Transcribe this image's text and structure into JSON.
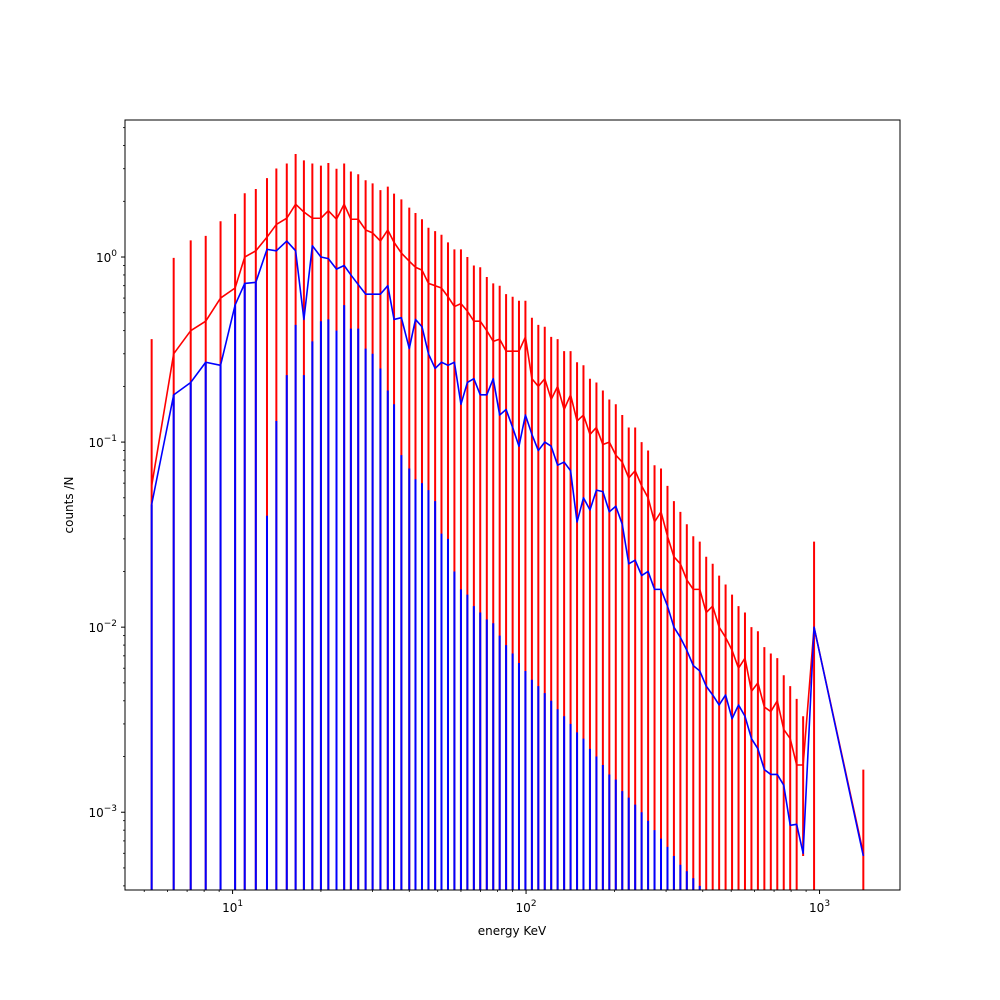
{
  "chart_data": {
    "type": "line",
    "title": "",
    "xlabel": "energy KeV",
    "ylabel": "counts /N",
    "xscale": "log",
    "yscale": "log",
    "xlim": [
      4.3,
      1880
    ],
    "ylim": [
      0.00038,
      5.5
    ],
    "grid": false,
    "legend": "none",
    "x_ticks": [
      {
        "value": 10,
        "mantissa": "10",
        "exp": "1"
      },
      {
        "value": 100,
        "mantissa": "10",
        "exp": "2"
      },
      {
        "value": 1000,
        "mantissa": "10",
        "exp": "3"
      }
    ],
    "y_ticks": [
      {
        "value": 0.001,
        "mantissa": "10",
        "exp": "−3"
      },
      {
        "value": 0.01,
        "mantissa": "10",
        "exp": "−2"
      },
      {
        "value": 0.1,
        "mantissa": "10",
        "exp": "−1"
      },
      {
        "value": 1,
        "mantissa": "10",
        "exp": "0"
      }
    ],
    "x_minor_ticks": [
      5,
      6,
      7,
      8,
      9,
      20,
      30,
      40,
      50,
      60,
      70,
      80,
      90,
      200,
      300,
      400,
      500,
      600,
      700,
      800,
      900
    ],
    "y_minor_ticks": [
      0.0004,
      0.0005,
      0.0006,
      0.0007,
      0.0008,
      0.0009,
      0.002,
      0.003,
      0.004,
      0.005,
      0.006,
      0.007,
      0.008,
      0.009,
      0.02,
      0.03,
      0.04,
      0.05,
      0.06,
      0.07,
      0.08,
      0.09,
      0.2,
      0.3,
      0.4,
      0.5,
      0.6,
      0.7,
      0.8,
      0.9,
      2,
      3,
      4,
      5
    ],
    "series": [
      {
        "color": "#ff0000",
        "x": [
          5.3,
          6.3,
          7.2,
          8.1,
          9.1,
          10.2,
          11.0,
          12.0,
          13.1,
          14.1,
          15.3,
          16.4,
          17.5,
          18.7,
          20.0,
          21.2,
          22.6,
          24.0,
          25.3,
          26.8,
          28.4,
          30.0,
          31.9,
          33.8,
          35.5,
          37.6,
          40.0,
          42.0,
          44.2,
          46.5,
          49.0,
          51.5,
          54.2,
          57.0,
          60.0,
          63.1,
          66.4,
          69.8,
          73.5,
          77.3,
          81.3,
          85.5,
          90.0,
          94.6,
          99.5,
          104.7,
          110.1,
          115.8,
          121.8,
          128.1,
          134.8,
          141.8,
          149.2,
          156.9,
          165.1,
          173.7,
          182.7,
          192.2,
          202.2,
          212.7,
          223.8,
          235.4,
          247.6,
          260.5,
          274.0,
          288.3,
          303.3,
          319.0,
          335.6,
          353.0,
          371.4,
          390.7,
          411.0,
          432.4,
          454.9,
          478.5,
          503.4,
          529.6,
          557.1,
          586.1,
          616.6,
          648.6,
          682.3,
          717.8,
          755.1,
          794.4,
          835.7,
          879.2,
          958,
          1410
        ],
        "values": [
          0.058,
          0.3,
          0.4,
          0.45,
          0.6,
          0.68,
          1.0,
          1.08,
          1.28,
          1.5,
          1.62,
          1.93,
          1.75,
          1.62,
          1.62,
          1.78,
          1.6,
          1.93,
          1.6,
          1.6,
          1.4,
          1.35,
          1.22,
          1.4,
          1.2,
          1.05,
          0.95,
          0.88,
          0.85,
          0.72,
          0.7,
          0.68,
          0.61,
          0.54,
          0.56,
          0.51,
          0.45,
          0.45,
          0.4,
          0.35,
          0.36,
          0.31,
          0.31,
          0.31,
          0.37,
          0.22,
          0.2,
          0.22,
          0.17,
          0.2,
          0.15,
          0.18,
          0.13,
          0.14,
          0.11,
          0.12,
          0.097,
          0.1,
          0.085,
          0.078,
          0.064,
          0.07,
          0.058,
          0.05,
          0.037,
          0.042,
          0.031,
          0.024,
          0.022,
          0.018,
          0.016,
          0.016,
          0.012,
          0.013,
          0.01,
          0.0088,
          0.0075,
          0.006,
          0.0068,
          0.0045,
          0.005,
          0.0037,
          0.0035,
          0.004,
          0.0028,
          0.0025,
          0.0018,
          0.0018,
          0.01,
          0.0006
        ],
        "errors_upper": [
          0.36,
          0.99,
          1.23,
          1.3,
          1.56,
          1.71,
          2.21,
          2.33,
          2.67,
          3.01,
          3.2,
          3.6,
          3.33,
          3.2,
          3.12,
          3.22,
          3.0,
          3.2,
          2.9,
          2.8,
          2.6,
          2.5,
          2.3,
          2.4,
          2.2,
          2.05,
          1.85,
          1.73,
          1.6,
          1.44,
          1.38,
          1.32,
          1.2,
          1.1,
          1.1,
          1.0,
          0.9,
          0.88,
          0.78,
          0.72,
          0.7,
          0.63,
          0.61,
          0.58,
          0.58,
          0.47,
          0.43,
          0.42,
          0.37,
          0.36,
          0.31,
          0.31,
          0.27,
          0.26,
          0.22,
          0.21,
          0.19,
          0.17,
          0.16,
          0.14,
          0.12,
          0.12,
          0.1,
          0.09,
          0.075,
          0.072,
          0.058,
          0.048,
          0.042,
          0.036,
          0.031,
          0.029,
          0.024,
          0.022,
          0.019,
          0.017,
          0.015,
          0.013,
          0.012,
          0.01,
          0.0095,
          0.0078,
          0.0072,
          0.0068,
          0.0055,
          0.0048,
          0.0041,
          0.0033,
          0.029,
          0.0017
        ],
        "errors_lower": [
          0.00038,
          0.00038,
          0.00038,
          0.00038,
          0.00038,
          0.00038,
          0.00038,
          0.00038,
          0.00038,
          0.00038,
          0.00038,
          0.00038,
          0.00038,
          0.00038,
          0.00038,
          0.00038,
          0.00038,
          0.00038,
          0.00038,
          0.00038,
          0.00038,
          0.00038,
          0.00038,
          0.00038,
          0.00038,
          0.00038,
          0.00038,
          0.00038,
          0.00038,
          0.00038,
          0.00038,
          0.00038,
          0.00038,
          0.00038,
          0.00038,
          0.00038,
          0.00038,
          0.00038,
          0.00038,
          0.00038,
          0.00038,
          0.00038,
          0.00038,
          0.00038,
          0.00038,
          0.00038,
          0.00038,
          0.00038,
          0.00038,
          0.00038,
          0.00038,
          0.00038,
          0.00038,
          0.00038,
          0.00038,
          0.00038,
          0.00038,
          0.00038,
          0.00038,
          0.00038,
          0.00038,
          0.00038,
          0.00038,
          0.00038,
          0.00038,
          0.00038,
          0.00038,
          0.00038,
          0.00038,
          0.00038,
          0.00038,
          0.00038,
          0.00038,
          0.00038,
          0.00038,
          0.00038,
          0.00038,
          0.00038,
          0.00038,
          0.00038,
          0.00038,
          0.00038,
          0.00038,
          0.00038,
          0.00038,
          0.00038,
          0.00038,
          0.00058,
          0.00038,
          0.00038
        ]
      },
      {
        "color": "#0000ff",
        "x": [
          5.3,
          6.3,
          7.2,
          8.1,
          9.1,
          10.2,
          11.0,
          12.0,
          13.1,
          14.1,
          15.3,
          16.4,
          17.5,
          18.7,
          20.0,
          21.2,
          22.6,
          24.0,
          25.3,
          26.8,
          28.4,
          30.0,
          31.9,
          33.8,
          35.5,
          37.6,
          40.0,
          42.0,
          44.2,
          46.5,
          49.0,
          51.5,
          54.2,
          57.0,
          60.0,
          63.1,
          66.4,
          69.8,
          73.5,
          77.3,
          81.3,
          85.5,
          90.0,
          94.6,
          99.5,
          104.7,
          110.1,
          115.8,
          121.8,
          128.1,
          134.8,
          141.8,
          149.2,
          156.9,
          165.1,
          173.7,
          182.7,
          192.2,
          202.2,
          212.7,
          223.8,
          235.4,
          247.6,
          260.5,
          274.0,
          288.3,
          303.3,
          319.0,
          335.6,
          353.0,
          371.4,
          390.7,
          411.0,
          432.4,
          454.9,
          478.5,
          503.4,
          529.6,
          557.1,
          586.1,
          616.6,
          648.6,
          682.3,
          717.8,
          755.1,
          794.4,
          835.7,
          879.2,
          958,
          1410
        ],
        "values": [
          0.046,
          0.18,
          0.21,
          0.27,
          0.26,
          0.55,
          0.72,
          0.73,
          1.1,
          1.08,
          1.22,
          1.08,
          0.46,
          1.15,
          1.0,
          0.98,
          0.86,
          0.9,
          0.8,
          0.71,
          0.63,
          0.63,
          0.63,
          0.7,
          0.46,
          0.47,
          0.32,
          0.46,
          0.42,
          0.3,
          0.25,
          0.27,
          0.26,
          0.27,
          0.16,
          0.21,
          0.22,
          0.18,
          0.18,
          0.22,
          0.14,
          0.15,
          0.12,
          0.095,
          0.14,
          0.11,
          0.09,
          0.1,
          0.095,
          0.075,
          0.078,
          0.07,
          0.037,
          0.05,
          0.043,
          0.055,
          0.054,
          0.042,
          0.045,
          0.036,
          0.022,
          0.023,
          0.019,
          0.02,
          0.016,
          0.016,
          0.013,
          0.01,
          0.0088,
          0.0075,
          0.0062,
          0.0058,
          0.0048,
          0.0043,
          0.0038,
          0.0043,
          0.0032,
          0.0038,
          0.0033,
          0.0025,
          0.0022,
          0.0017,
          0.0016,
          0.0016,
          0.0014,
          0.00085,
          0.00086,
          0.0006,
          0.01,
          0.00058
        ],
        "errors_upper": [
          0.046,
          0.18,
          0.21,
          0.27,
          0.26,
          0.55,
          0.72,
          0.73,
          0.04,
          0.13,
          0.23,
          0.43,
          0.23,
          0.35,
          0.45,
          0.46,
          0.4,
          0.55,
          0.41,
          0.41,
          0.32,
          0.3,
          0.25,
          0.19,
          0.16,
          0.085,
          0.072,
          0.063,
          0.06,
          0.055,
          0.048,
          0.032,
          0.03,
          0.02,
          0.016,
          0.015,
          0.013,
          0.012,
          0.011,
          0.0105,
          0.009,
          0.008,
          0.0072,
          0.0064,
          0.0058,
          0.0052,
          0.0048,
          0.0044,
          0.004,
          0.0036,
          0.0033,
          0.003,
          0.0027,
          0.0025,
          0.0022,
          0.002,
          0.0018,
          0.0016,
          0.0015,
          0.0013,
          0.0012,
          0.0011,
          0.001,
          0.0009,
          0.0008,
          0.00072,
          0.00065,
          0.00058,
          0.00052,
          0.00048,
          0.00044,
          0.0004,
          0.00038,
          0.00038,
          0.00038,
          0.00038,
          0.00038,
          0.00038,
          0.00038,
          0.00038,
          0.00038,
          0.00038,
          0.00038,
          0.00038,
          0.00038,
          0.00038,
          0.00038,
          0.00038,
          0.00038,
          0.00038
        ]
      }
    ]
  }
}
